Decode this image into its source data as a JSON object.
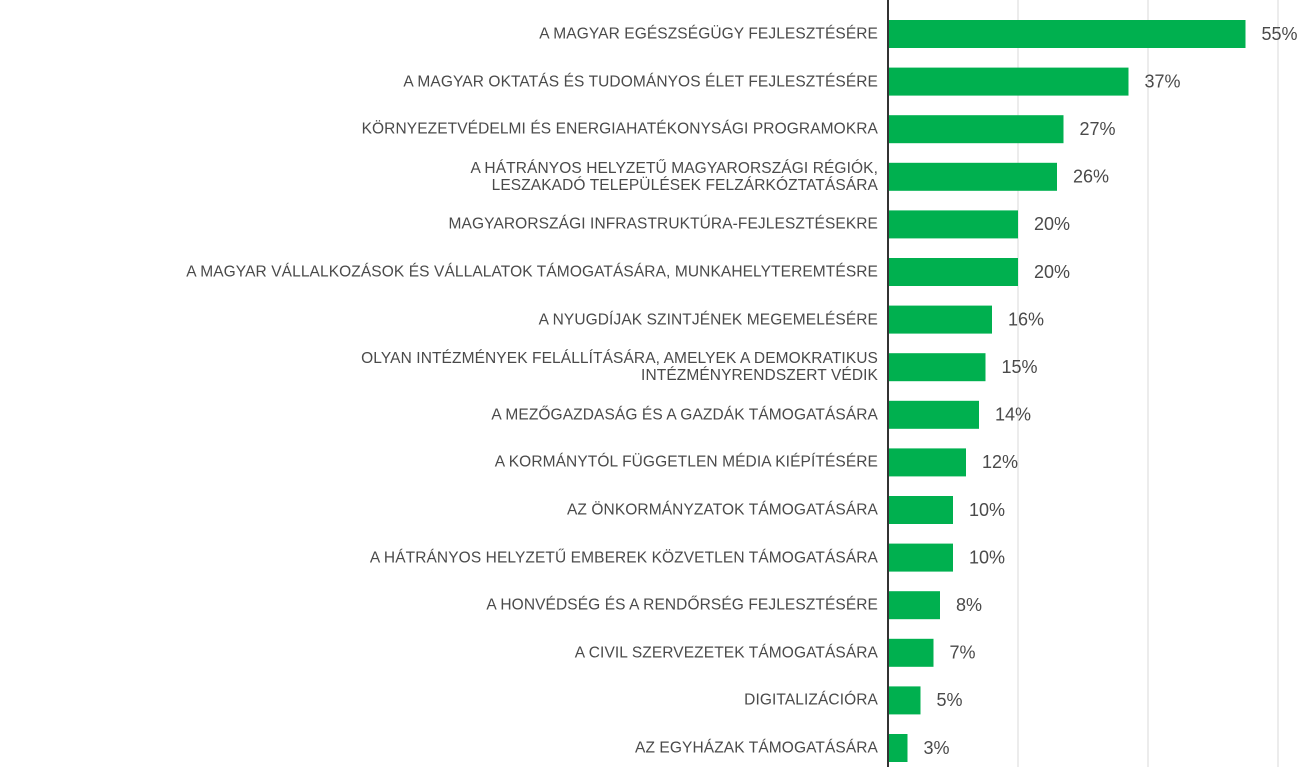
{
  "chart_data": {
    "type": "bar",
    "orientation": "horizontal",
    "categories": [
      "A MAGYAR EGÉSZSÉGÜGY FEJLESZTÉSÉRE",
      "A MAGYAR OKTATÁS ÉS TUDOMÁNYOS ÉLET FEJLESZTÉSÉRE",
      "KÖRNYEZETVÉDELMI ÉS ENERGIAHATÉKONYSÁGI PROGRAMOKRA",
      "A HÁTRÁNYOS HELYZETŰ MAGYARORSZÁGI RÉGIÓK,\nLESZAKADÓ TELEPÜLÉSEK FELZÁRKÓZTATÁSÁRA",
      "MAGYARORSZÁGI INFRASTRUKTÚRA-FEJLESZTÉSEKRE",
      "A MAGYAR VÁLLALKOZÁSOK ÉS VÁLLALATOK TÁMOGATÁSÁRA, MUNKAHELYTEREMTÉSRE",
      "A NYUGDÍJAK SZINTJÉNEK MEGEMELÉSÉRE",
      "OLYAN INTÉZMÉNYEK FELÁLLÍTÁSÁRA, AMELYEK A DEMOKRATIKUS\nINTÉZMÉNYRENDSZERT VÉDIK",
      "A MEZŐGAZDASÁG ÉS A GAZDÁK TÁMOGATÁSÁRA",
      "A KORMÁNYTÓL FÜGGETLEN MÉDIA KIÉPÍTÉSÉRE",
      "AZ ÖNKORMÁNYZATOK TÁMOGATÁSÁRA",
      "A HÁTRÁNYOS HELYZETŰ EMBEREK KÖZVETLEN TÁMOGATÁSÁRA",
      "A HONVÉDSÉG ÉS A RENDŐRSÉG FEJLESZTÉSÉRE",
      "A CIVIL SZERVEZETEK TÁMOGATÁSÁRA",
      "DIGITALIZÁCIÓRA",
      "AZ EGYHÁZAK TÁMOGATÁSÁRA"
    ],
    "values": [
      55,
      37,
      27,
      26,
      20,
      20,
      16,
      15,
      14,
      12,
      10,
      10,
      8,
      7,
      5,
      3
    ],
    "value_labels": [
      "55%",
      "37%",
      "27%",
      "26%",
      "20%",
      "20%",
      "16%",
      "15%",
      "14%",
      "12%",
      "10%",
      "10%",
      "8%",
      "7%",
      "5%",
      "3%"
    ],
    "color": "#00b04f",
    "xlim": [
      0,
      60
    ],
    "xticks": [
      0,
      20,
      40,
      60
    ],
    "grid": true
  }
}
